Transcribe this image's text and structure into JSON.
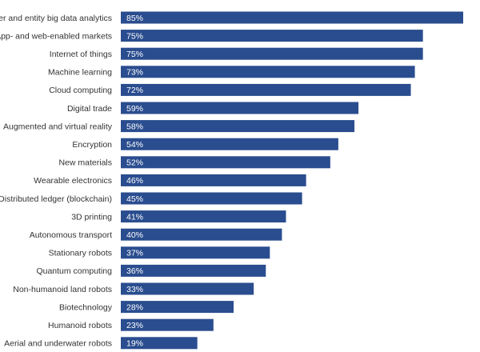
{
  "chart_data": {
    "type": "bar",
    "orientation": "horizontal",
    "categories": [
      "User and entity big data analytics",
      "App- and web-enabled markets",
      "Internet of things",
      "Machine learning",
      "Cloud computing",
      "Digital trade",
      "Augmented and virtual reality",
      "Encryption",
      "New materials",
      "Wearable electronics",
      "Distributed ledger (blockchain)",
      "3D printing",
      "Autonomous transport",
      "Stationary robots",
      "Quantum computing",
      "Non-humanoid land robots",
      "Biotechnology",
      "Humanoid robots",
      "Aerial and underwater robots"
    ],
    "values": [
      85,
      75,
      75,
      73,
      72,
      59,
      58,
      54,
      52,
      46,
      45,
      41,
      40,
      37,
      36,
      33,
      28,
      23,
      19
    ],
    "value_labels": [
      "85%",
      "75%",
      "75%",
      "73%",
      "72%",
      "59%",
      "58%",
      "54%",
      "52%",
      "46%",
      "45%",
      "41%",
      "40%",
      "37%",
      "36%",
      "33%",
      "28%",
      "23%",
      "19%"
    ],
    "title": "",
    "xlabel": "",
    "ylabel": "",
    "xlim": [
      0,
      85
    ],
    "grid": false,
    "legend": "none",
    "bar_color": "#2a4d8f",
    "value_label_color": "#ffffff",
    "category_label_color": "#333333"
  }
}
